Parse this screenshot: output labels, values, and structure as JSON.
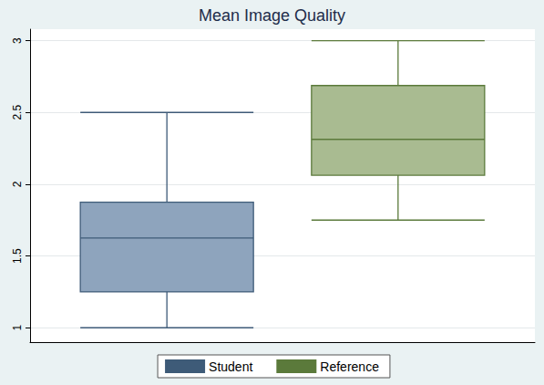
{
  "chart_data": {
    "type": "box",
    "title": "Mean Image Quality",
    "series": [
      {
        "name": "Student",
        "color": "#8ea4bd",
        "values": [
          1,
          1.25,
          1.625,
          1.875,
          2.5
        ]
      },
      {
        "name": "Reference",
        "color": "#a9bb91",
        "values": [
          1.75,
          2.0625,
          2.3125,
          2.6875,
          3
        ]
      }
    ],
    "ylim": [
      0.9,
      3.08
    ],
    "yticks": [
      1,
      1.5,
      2,
      2.5,
      3
    ],
    "grid": true,
    "legend": "bottom",
    "tick_labels": "y"
  }
}
